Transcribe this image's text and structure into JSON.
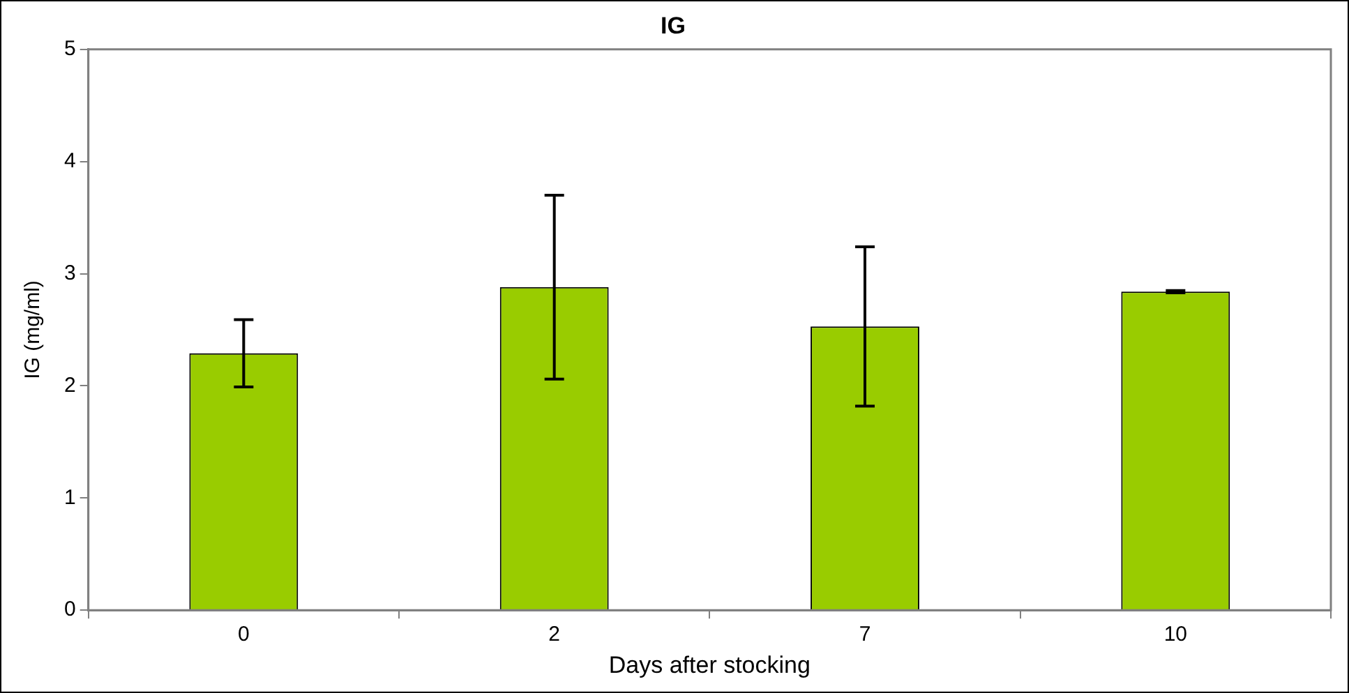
{
  "chart_data": {
    "type": "bar",
    "title": "IG",
    "xlabel": "Days after stocking",
    "ylabel": "IG (mg/ml)",
    "categories": [
      "0",
      "2",
      "7",
      "10"
    ],
    "values": [
      2.29,
      2.88,
      2.53,
      2.84
    ],
    "errors": [
      0.3,
      0.82,
      0.71,
      0.01
    ],
    "color": "#99cc00",
    "ylim": [
      0,
      5
    ],
    "yticks": [
      0,
      1,
      2,
      3,
      4,
      5
    ],
    "grid": false,
    "legend": false
  }
}
